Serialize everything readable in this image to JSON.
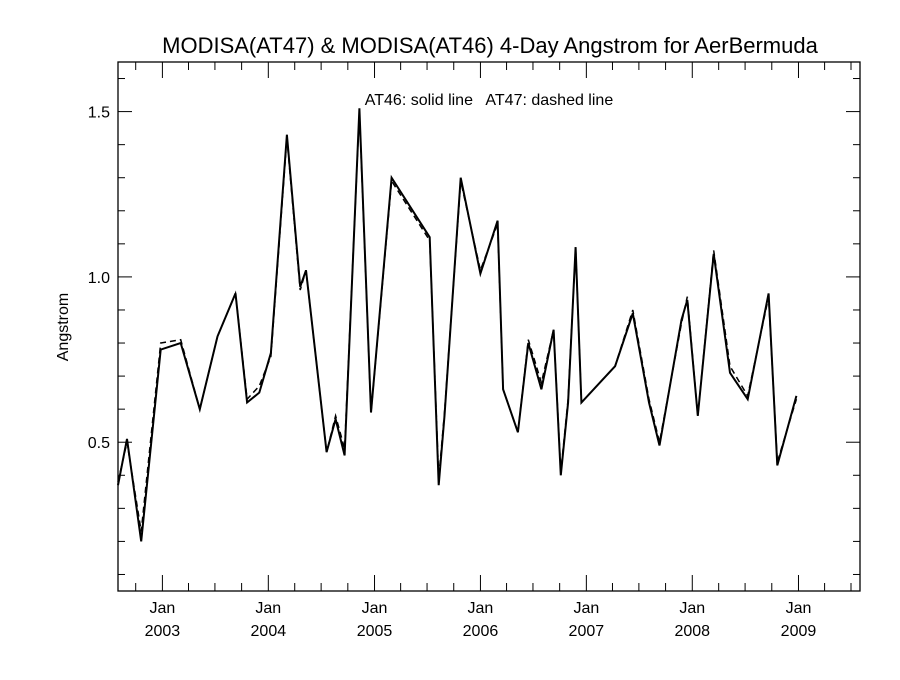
{
  "chart_data": {
    "type": "line",
    "title": "MODISA(AT47) & MODISA(AT46) 4-Day Angstrom for AerBermuda",
    "annotation": "AT46: solid line   AT47: dashed line",
    "xlabel": "",
    "ylabel": "Angstrom",
    "xlim": [
      "2002-08-01",
      "2009-08-01"
    ],
    "ylim": [
      0.05,
      1.65
    ],
    "yticks": [
      0.5,
      1.0,
      1.5
    ],
    "ytick_labels": [
      "0.5",
      "1.0",
      "1.5"
    ],
    "xticks": [
      {
        "month": "Jan",
        "year": "2003",
        "date": "2003-01-01"
      },
      {
        "month": "Jan",
        "year": "2004",
        "date": "2004-01-01"
      },
      {
        "month": "Jan",
        "year": "2005",
        "date": "2005-01-01"
      },
      {
        "month": "Jan",
        "year": "2006",
        "date": "2006-01-01"
      },
      {
        "month": "Jan",
        "year": "2007",
        "date": "2007-01-01"
      },
      {
        "month": "Jan",
        "year": "2008",
        "date": "2008-01-01"
      },
      {
        "month": "Jan",
        "year": "2009",
        "date": "2009-01-01"
      }
    ],
    "grid": false,
    "series": [
      {
        "name": "AT46",
        "style": "solid",
        "color": "#000000",
        "x": [
          "2002-08-01",
          "2002-09-01",
          "2002-10-20",
          "2002-12-26",
          "2003-03-05",
          "2003-05-10",
          "2003-07-10",
          "2003-09-10",
          "2003-10-20",
          "2003-12-01",
          "2004-01-10",
          "2004-03-05",
          "2004-04-20",
          "2004-05-10",
          "2004-07-20",
          "2004-08-20",
          "2004-09-20",
          "2004-11-10",
          "2004-12-20",
          "2005-03-01",
          "2005-07-10",
          "2005-08-10",
          "2005-08-30",
          "2005-10-25",
          "2006-01-01",
          "2006-03-01",
          "2006-03-20",
          "2006-05-10",
          "2006-06-15",
          "2006-07-30",
          "2006-09-10",
          "2006-10-05",
          "2006-10-30",
          "2006-11-25",
          "2006-12-15",
          "2007-04-10",
          "2007-06-10",
          "2007-08-05",
          "2007-09-10",
          "2007-11-25",
          "2007-12-15",
          "2008-01-20",
          "2008-03-15",
          "2008-05-10",
          "2008-07-10",
          "2008-09-20",
          "2008-10-20",
          "2008-12-25",
          "2009-02-15",
          "2009-04-10",
          "2009-06-30",
          "2009-08-01"
        ],
        "y": [
          0.37,
          0.51,
          0.2,
          0.78,
          0.8,
          0.6,
          0.82,
          0.95,
          0.62,
          0.65,
          0.77,
          1.43,
          0.97,
          1.02,
          0.47,
          0.57,
          0.46,
          1.51,
          0.59,
          1.3,
          1.12,
          0.37,
          0.58,
          1.3,
          1.01,
          1.17,
          0.66,
          0.53,
          0.8,
          0.66,
          0.84,
          0.4,
          0.62,
          1.09,
          0.62,
          0.73,
          0.89,
          0.62,
          0.49,
          0.87,
          0.93,
          0.58,
          1.07,
          0.71,
          0.63,
          0.95,
          0.43,
          0.64,
          null,
          null,
          null,
          null
        ]
      },
      {
        "name": "AT47",
        "style": "dashed",
        "color": "#000000",
        "x": [
          "2002-08-01",
          "2002-09-01",
          "2002-10-20",
          "2002-12-26",
          "2003-03-05",
          "2003-05-10",
          "2003-07-10",
          "2003-09-10",
          "2003-10-20",
          "2003-12-01",
          "2004-01-10",
          "2004-03-05",
          "2004-04-20",
          "2004-05-10",
          "2004-07-20",
          "2004-08-20",
          "2004-09-20",
          "2004-11-10",
          "2004-12-20",
          "2005-03-01",
          "2005-07-10",
          "2005-08-10",
          "2005-08-30",
          "2005-10-25",
          "2006-01-01",
          "2006-03-01",
          "2006-03-20",
          "2006-05-10",
          "2006-06-15",
          "2006-07-30",
          "2006-09-10",
          "2006-10-05",
          "2006-10-30",
          "2006-11-25",
          "2006-12-15",
          "2007-04-10",
          "2007-06-10",
          "2007-08-05",
          "2007-09-10",
          "2007-11-25",
          "2007-12-15",
          "2008-01-20",
          "2008-03-15",
          "2008-05-10",
          "2008-07-10",
          "2008-09-20",
          "2008-10-20",
          "2008-12-25"
        ],
        "y": [
          0.38,
          0.5,
          0.23,
          0.8,
          0.81,
          0.6,
          0.82,
          0.95,
          0.63,
          0.67,
          0.76,
          1.42,
          0.96,
          1.02,
          0.47,
          0.58,
          0.48,
          1.5,
          0.59,
          1.29,
          1.11,
          0.39,
          0.59,
          1.29,
          1.02,
          1.16,
          0.66,
          0.53,
          0.81,
          0.68,
          0.84,
          0.41,
          0.63,
          1.09,
          0.62,
          0.73,
          0.9,
          0.63,
          0.5,
          0.86,
          0.94,
          0.58,
          1.08,
          0.73,
          0.64,
          0.94,
          0.44,
          0.63
        ]
      }
    ]
  }
}
